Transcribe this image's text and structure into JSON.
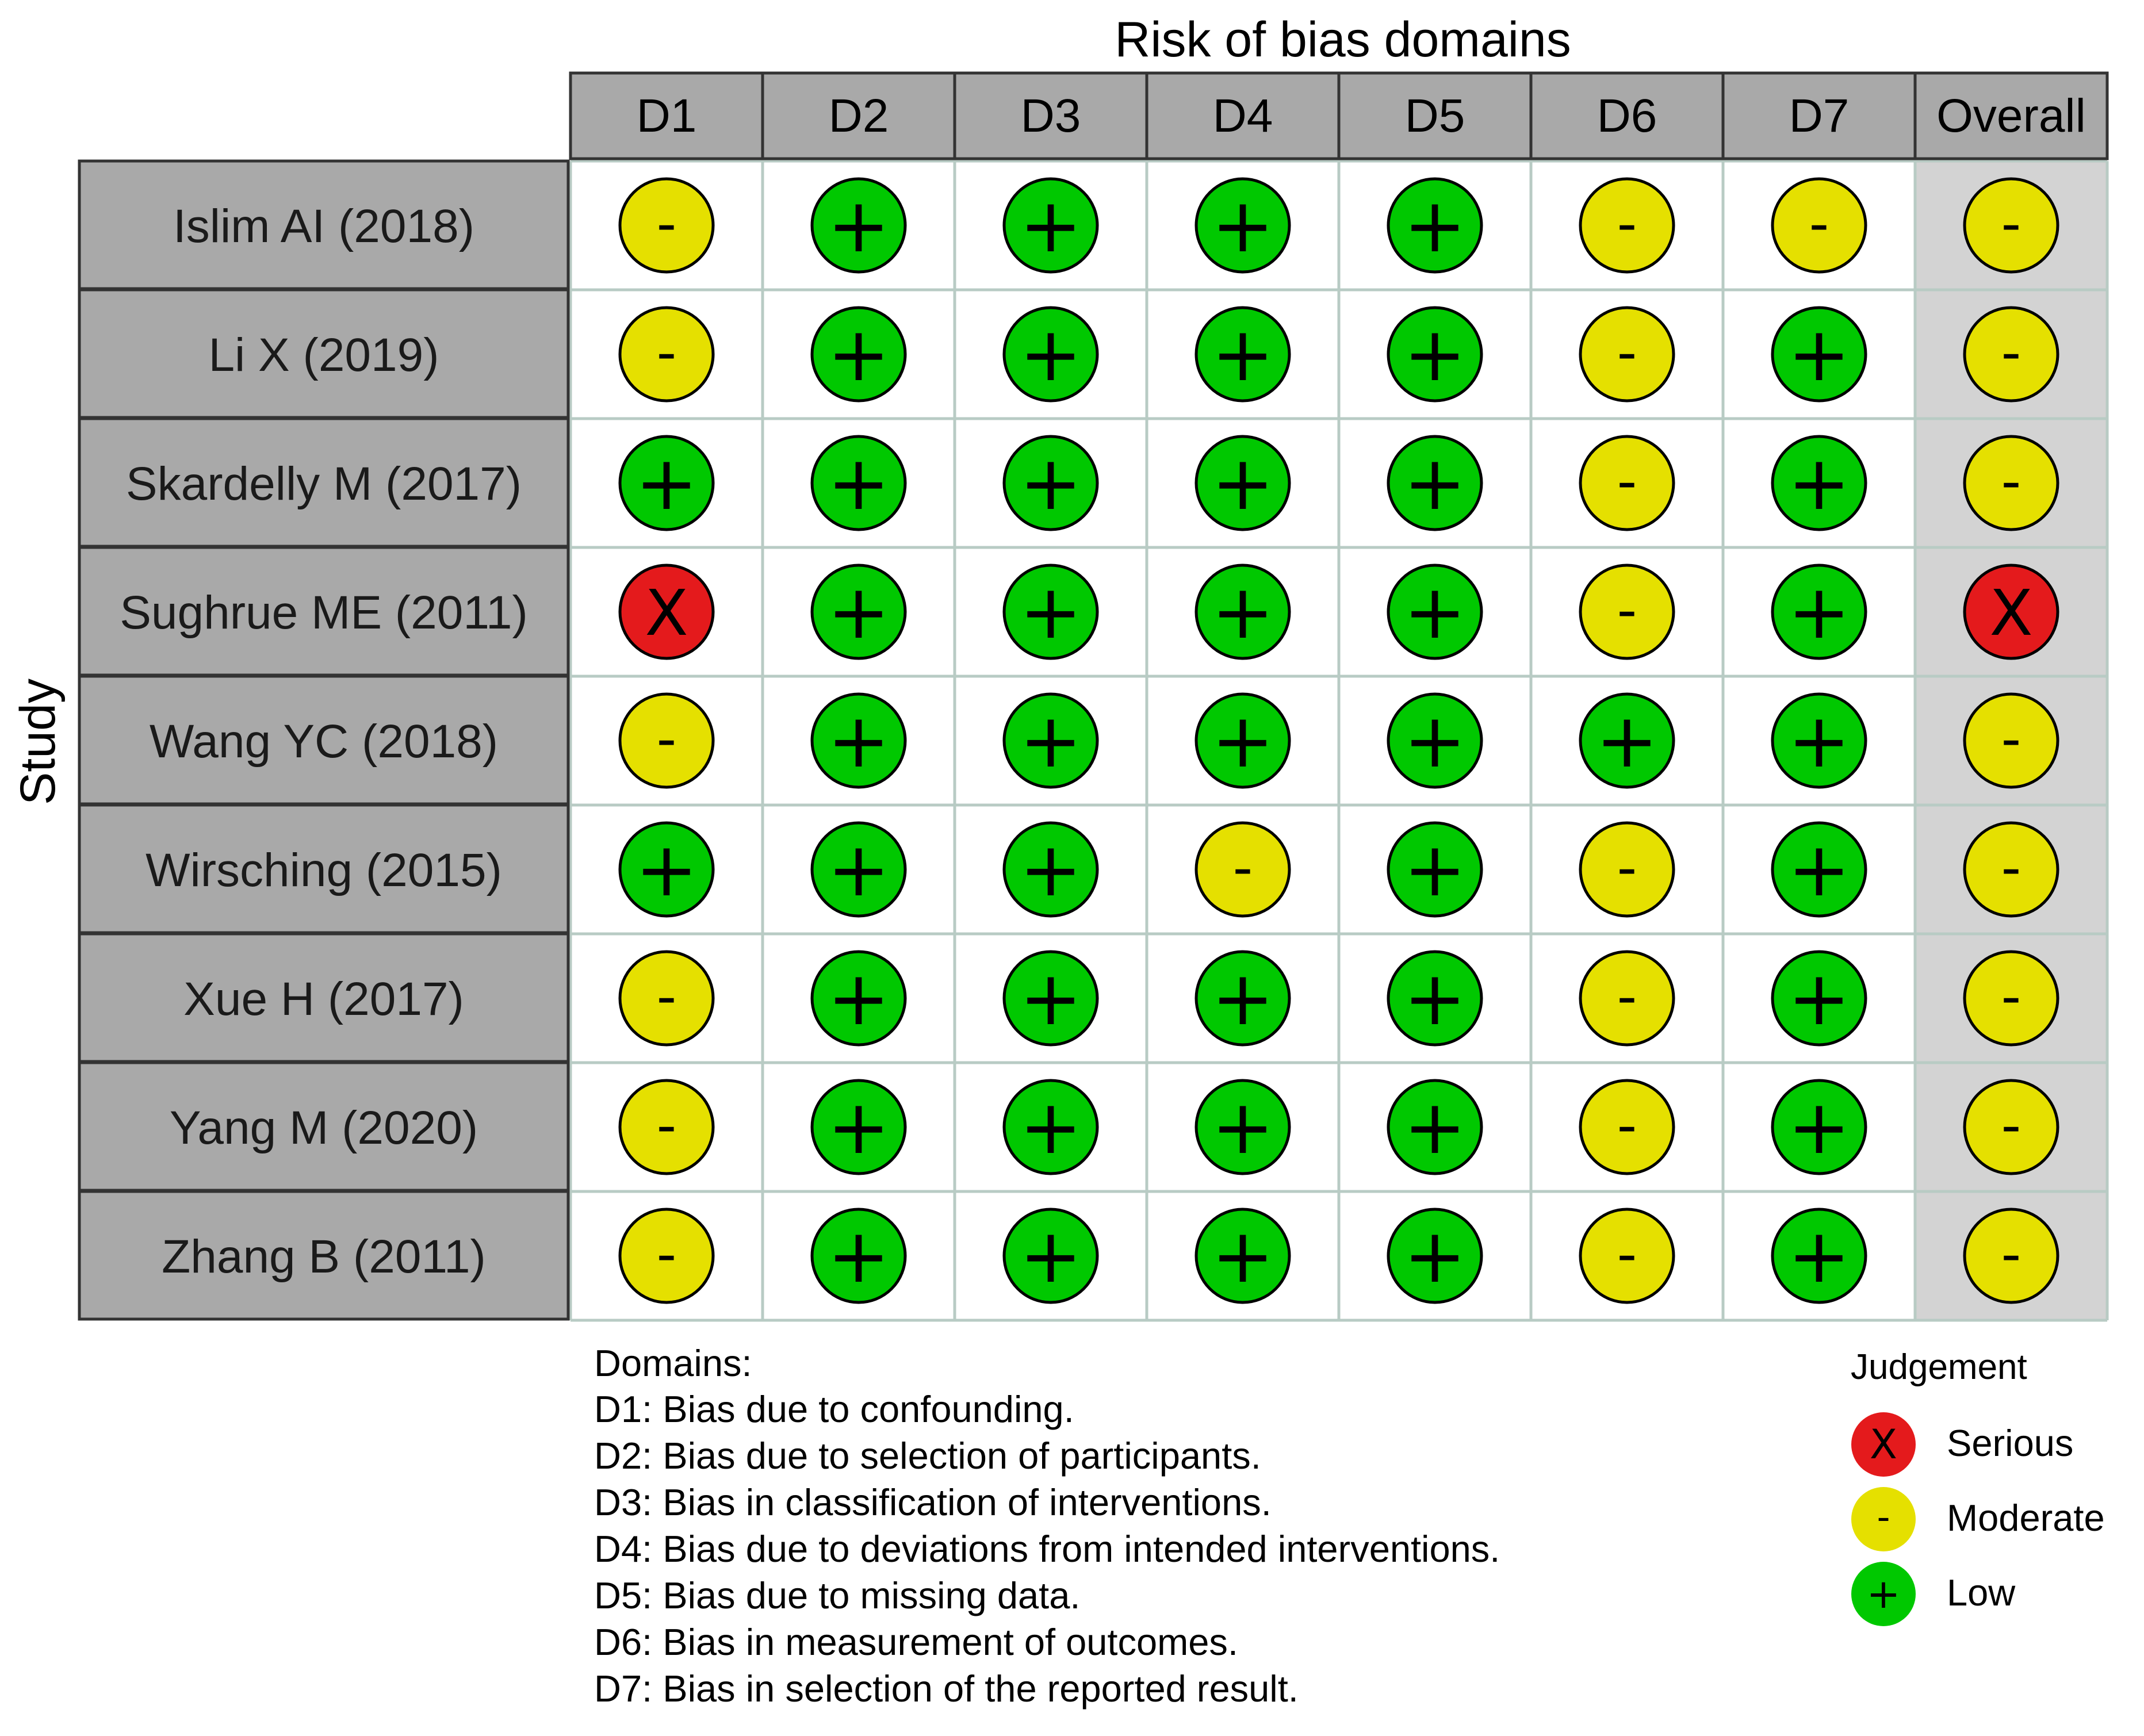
{
  "chart_data": {
    "type": "table",
    "title": "Risk of bias domains",
    "ylabel": "Study",
    "columns": [
      "D1",
      "D2",
      "D3",
      "D4",
      "D5",
      "D6",
      "D7",
      "Overall"
    ],
    "studies": [
      "Islim AI (2018)",
      "Li X (2019)",
      "Skardelly M (2017)",
      "Sughrue ME (2011)",
      "Wang YC (2018)",
      "Wirsching (2015)",
      "Xue H (2017)",
      "Yang M (2020)",
      "Zhang B (2011)"
    ],
    "judgements": [
      [
        "Moderate",
        "Low",
        "Low",
        "Low",
        "Low",
        "Moderate",
        "Moderate",
        "Moderate"
      ],
      [
        "Moderate",
        "Low",
        "Low",
        "Low",
        "Low",
        "Moderate",
        "Low",
        "Moderate"
      ],
      [
        "Low",
        "Low",
        "Low",
        "Low",
        "Low",
        "Moderate",
        "Low",
        "Moderate"
      ],
      [
        "Serious",
        "Low",
        "Low",
        "Low",
        "Low",
        "Moderate",
        "Low",
        "Serious"
      ],
      [
        "Moderate",
        "Low",
        "Low",
        "Low",
        "Low",
        "Low",
        "Low",
        "Moderate"
      ],
      [
        "Low",
        "Low",
        "Low",
        "Moderate",
        "Low",
        "Moderate",
        "Low",
        "Moderate"
      ],
      [
        "Moderate",
        "Low",
        "Low",
        "Low",
        "Low",
        "Moderate",
        "Low",
        "Moderate"
      ],
      [
        "Moderate",
        "Low",
        "Low",
        "Low",
        "Low",
        "Moderate",
        "Low",
        "Moderate"
      ],
      [
        "Moderate",
        "Low",
        "Low",
        "Low",
        "Low",
        "Moderate",
        "Low",
        "Moderate"
      ]
    ],
    "domains_title": "Domains:",
    "domains": [
      "D1: Bias due to confounding.",
      "D2: Bias due to selection of participants.",
      "D3: Bias in classification of interventions.",
      "D4: Bias due to deviations from intended interventions.",
      "D5: Bias due to missing data.",
      "D6: Bias in measurement of outcomes.",
      "D7: Bias in selection of the reported result."
    ],
    "legend": {
      "title": "Judgement",
      "placement": "bottom-right",
      "items": [
        {
          "label": "Serious",
          "symbol": "X",
          "color": "#e41a1c"
        },
        {
          "label": "Moderate",
          "symbol": "-",
          "color": "#e5e000"
        },
        {
          "label": "Low",
          "symbol": "+",
          "color": "#00c800"
        }
      ]
    },
    "symbols": {
      "Serious": "X",
      "Moderate": "-",
      "Low": "+"
    },
    "colors": {
      "Serious": "#e41a1c",
      "Moderate": "#e5e000",
      "Low": "#00c800",
      "header_fill": "#a9a9a9",
      "overall_fill": "#d3d3d3",
      "grid": "#b8cbc4"
    }
  }
}
